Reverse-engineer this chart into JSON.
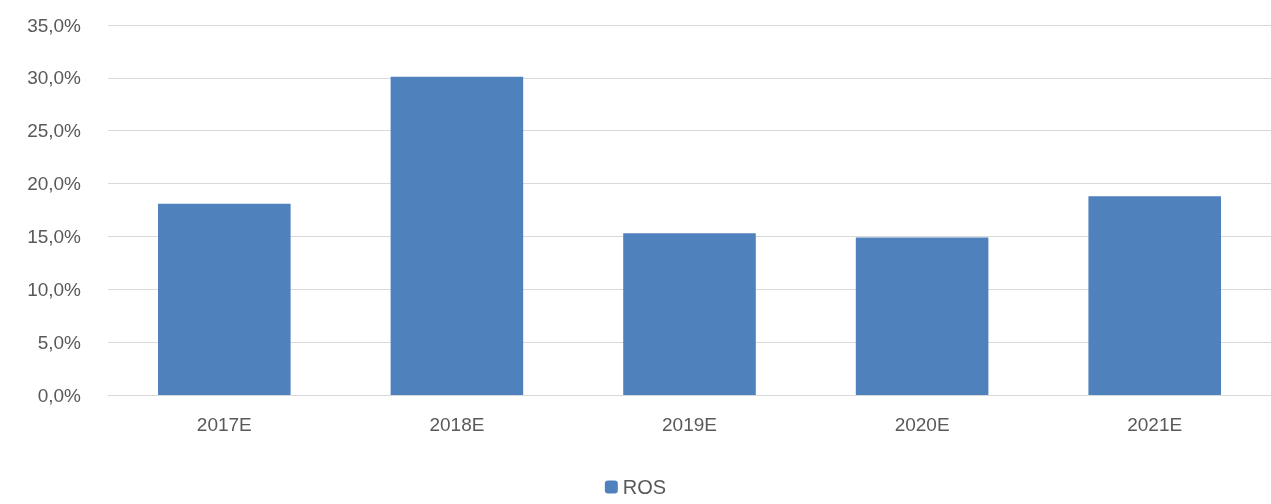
{
  "chart_data": {
    "type": "bar",
    "categories": [
      "2017E",
      "2018E",
      "2019E",
      "2020E",
      "2021E"
    ],
    "series": [
      {
        "name": "ROS",
        "color": "#4f81bd",
        "values": [
          18.1,
          30.1,
          15.3,
          14.9,
          18.8
        ]
      }
    ],
    "ylim": [
      0,
      35
    ],
    "yticks": [
      {
        "value": 0,
        "label": "0,0%"
      },
      {
        "value": 5,
        "label": "5,0%"
      },
      {
        "value": 10,
        "label": "10,0%"
      },
      {
        "value": 15,
        "label": "15,0%"
      },
      {
        "value": 20,
        "label": "20,0%"
      },
      {
        "value": 25,
        "label": "25,0%"
      },
      {
        "value": 30,
        "label": "30,0%"
      },
      {
        "value": 35,
        "label": "35,0%"
      }
    ],
    "grid": "y",
    "legend": "bottom"
  }
}
